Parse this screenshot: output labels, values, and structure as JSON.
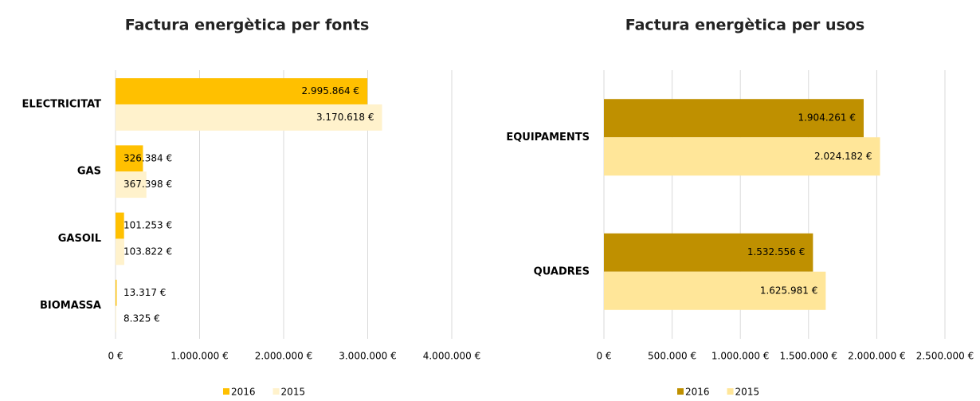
{
  "chart_data": [
    {
      "type": "hbar",
      "title": "Factura energètica per fonts",
      "categories": [
        "ELECTRICITAT",
        "GAS",
        "GASOIL",
        "BIOMASSA"
      ],
      "series": [
        {
          "name": "2016",
          "color": "#ffc000",
          "values": [
            2995864,
            326384,
            101253,
            13317
          ],
          "value_labels": [
            "2.995.864 €",
            "326.384 €",
            "101.253 €",
            "13.317 €"
          ]
        },
        {
          "name": "2015",
          "color": "#fff2cc",
          "values": [
            3170618,
            367398,
            103822,
            8325
          ],
          "value_labels": [
            "3.170.618 €",
            "367.398 €",
            "103.822 €",
            "8.325 €"
          ]
        }
      ],
      "xlim": [
        0,
        4000000
      ],
      "xticks": [
        {
          "value": 0,
          "label": "0 €"
        },
        {
          "value": 1000000,
          "label": "1.000.000 €"
        },
        {
          "value": 2000000,
          "label": "2.000.000 €"
        },
        {
          "value": 3000000,
          "label": "3.000.000 €"
        },
        {
          "value": 4000000,
          "label": "4.000.000 €"
        }
      ],
      "grid": true,
      "legend": "bottom"
    },
    {
      "type": "hbar",
      "title": "Factura energètica per usos",
      "categories": [
        "EQUIPAMENTS",
        "QUADRES"
      ],
      "series": [
        {
          "name": "2016",
          "color": "#bf9000",
          "values": [
            1904261,
            1532556
          ],
          "value_labels": [
            "1.904.261 €",
            "1.532.556 €"
          ]
        },
        {
          "name": "2015",
          "color": "#ffe699",
          "values": [
            2024182,
            1625981
          ],
          "value_labels": [
            "2.024.182 €",
            "1.625.981 €"
          ]
        }
      ],
      "xlim": [
        0,
        2500000
      ],
      "xticks": [
        {
          "value": 0,
          "label": "0 €"
        },
        {
          "value": 500000,
          "label": "500.000 €"
        },
        {
          "value": 1000000,
          "label": "1.000.000 €"
        },
        {
          "value": 1500000,
          "label": "1.500.000 €"
        },
        {
          "value": 2000000,
          "label": "2.000.000 €"
        },
        {
          "value": 2500000,
          "label": "2.500.000 €"
        }
      ],
      "grid": true,
      "legend": "bottom"
    }
  ]
}
